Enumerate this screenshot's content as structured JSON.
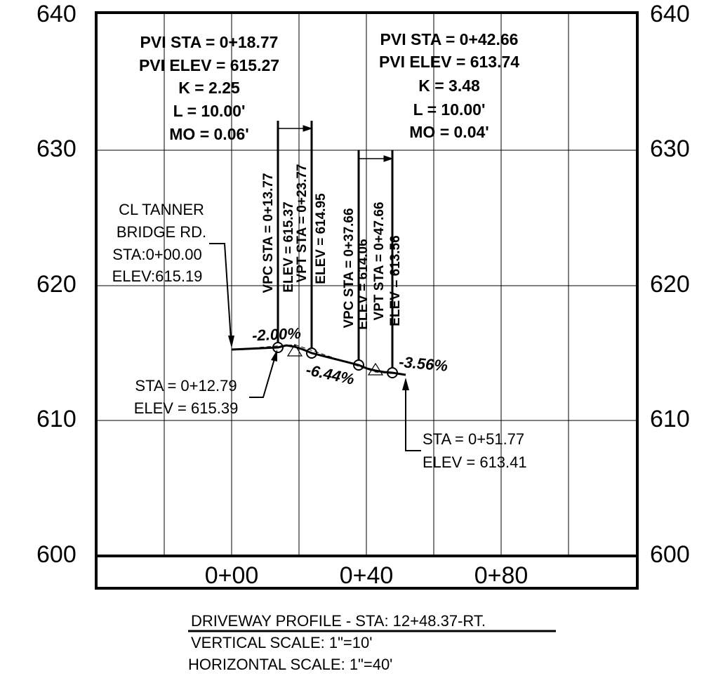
{
  "elevation_labels_left": [
    "640",
    "630",
    "620",
    "610",
    "600"
  ],
  "elevation_labels_right": [
    "640",
    "630",
    "620",
    "610",
    "600"
  ],
  "station_labels": [
    "0+00",
    "0+40",
    "0+80"
  ],
  "curves": [
    {
      "pvi_sta": "PVI STA = 0+18.77",
      "pvi_elev": "PVI ELEV = 615.27",
      "k": "K = 2.25",
      "l": "L = 10.00'",
      "mo": "MO = 0.06'",
      "vpc_sta": "VPC STA = 0+13.77",
      "vpc_elev": "ELEV = 615.37",
      "vpt_sta": "VPT STA = 0+23.77",
      "vpt_elev": "ELEV = 614.95"
    },
    {
      "pvi_sta": "PVI STA = 0+42.66",
      "pvi_elev": "PVI ELEV = 613.74",
      "k": "K = 3.48",
      "l": "L = 10.00'",
      "mo": "MO = 0.04'",
      "vpc_sta": "VPC STA = 0+37.66",
      "vpc_elev": "ELEV = 614.06",
      "vpt_sta": "VPT STA = 0+47.66",
      "vpt_elev": "ELEV = 613.56"
    }
  ],
  "grades": [
    "-2.00%",
    "-6.44%",
    "-3.56%"
  ],
  "callouts": [
    {
      "lines": [
        "CL TANNER",
        "BRIDGE RD.",
        "STA:0+00.00",
        "ELEV:615.19"
      ]
    },
    {
      "lines": [
        "STA = 0+12.79",
        "ELEV = 615.39"
      ]
    },
    {
      "lines": [
        "STA = 0+51.77",
        "ELEV = 613.41"
      ]
    }
  ],
  "title": "DRIVEWAY PROFILE - STA: 12+48.37-RT.",
  "vertical_scale": "VERTICAL SCALE: 1\"=10'",
  "horizontal_scale": "HORIZONTAL SCALE: 1\"=40'"
}
